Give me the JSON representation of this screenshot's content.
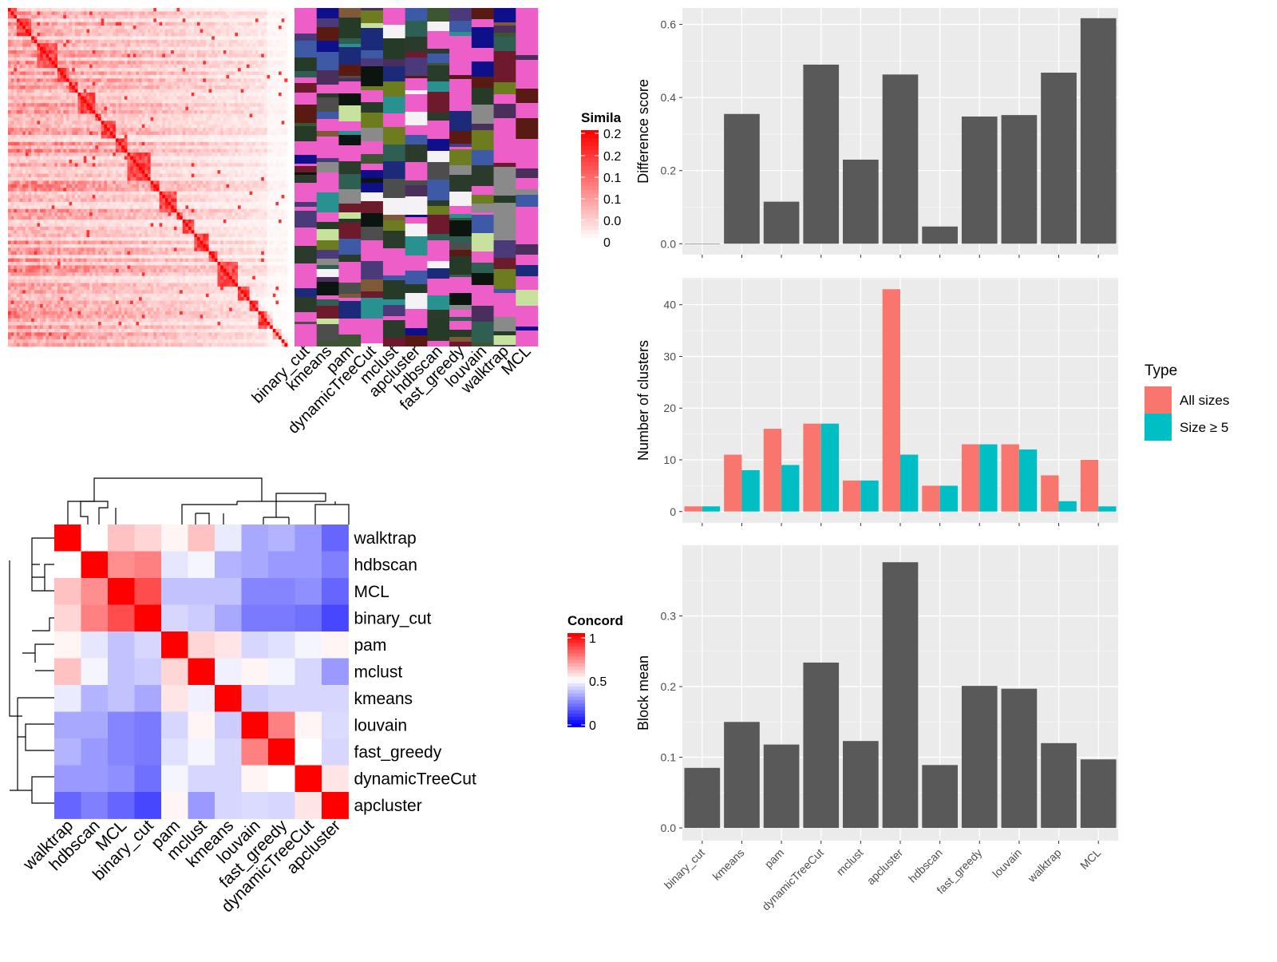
{
  "chart_data": [
    {
      "type": "heatmap",
      "panel": "similarity",
      "legend_title": "Simila",
      "legend_ticks": [
        "0.2",
        "0.2",
        "0.1",
        "0.1",
        "0.0",
        "0"
      ],
      "colors": {
        "low": "#ffffff",
        "high": "#ff0000"
      }
    },
    {
      "type": "heatmap",
      "panel": "cluster-assignments",
      "columns": [
        "binary_cut",
        "kmeans",
        "pam",
        "dynamicTreeCut",
        "mclust",
        "apcluster",
        "hdbscan",
        "fast_greedy",
        "louvain",
        "walktrap",
        "MCL"
      ],
      "background_color": "#ee5ec8"
    },
    {
      "type": "heatmap",
      "panel": "concordance",
      "legend_title": "Concord",
      "legend_ticks": [
        "1",
        "0.5",
        "0"
      ],
      "colors": {
        "low": "#0000ff",
        "mid": "#ffffff",
        "high": "#ff0000"
      },
      "rows": [
        "walktrap",
        "hdbscan",
        "MCL",
        "binary_cut",
        "pam",
        "mclust",
        "kmeans",
        "louvain",
        "fast_greedy",
        "dynamicTreeCut",
        "apcluster"
      ],
      "columns": [
        "walktrap",
        "hdbscan",
        "MCL",
        "binary_cut",
        "pam",
        "mclust",
        "kmeans",
        "louvain",
        "fast_greedy",
        "dynamicTreeCut",
        "apcluster"
      ],
      "values": [
        [
          1,
          0.5,
          0.62,
          0.58,
          0.52,
          0.62,
          0.46,
          0.33,
          0.35,
          0.3,
          0.2
        ],
        [
          0.5,
          1,
          0.72,
          0.75,
          0.45,
          0.48,
          0.35,
          0.33,
          0.3,
          0.3,
          0.25
        ],
        [
          0.62,
          0.72,
          1,
          0.85,
          0.38,
          0.38,
          0.38,
          0.26,
          0.26,
          0.28,
          0.2
        ],
        [
          0.58,
          0.75,
          0.85,
          1,
          0.42,
          0.4,
          0.33,
          0.24,
          0.24,
          0.22,
          0.14
        ],
        [
          0.52,
          0.45,
          0.38,
          0.42,
          1,
          0.58,
          0.55,
          0.42,
          0.44,
          0.48,
          0.52
        ],
        [
          0.62,
          0.48,
          0.38,
          0.4,
          0.58,
          1,
          0.47,
          0.52,
          0.48,
          0.42,
          0.3
        ],
        [
          0.46,
          0.35,
          0.38,
          0.33,
          0.55,
          0.47,
          1,
          0.4,
          0.42,
          0.42,
          0.42
        ],
        [
          0.33,
          0.33,
          0.26,
          0.24,
          0.42,
          0.52,
          0.4,
          1,
          0.75,
          0.52,
          0.43
        ],
        [
          0.35,
          0.3,
          0.26,
          0.24,
          0.44,
          0.48,
          0.42,
          0.75,
          1,
          0.5,
          0.42
        ],
        [
          0.3,
          0.3,
          0.28,
          0.22,
          0.48,
          0.42,
          0.42,
          0.52,
          0.5,
          1,
          0.55
        ],
        [
          0.2,
          0.25,
          0.2,
          0.14,
          0.52,
          0.3,
          0.42,
          0.43,
          0.42,
          0.55,
          1
        ]
      ]
    },
    {
      "type": "bar",
      "panel": "difference",
      "ylabel": "Difference score",
      "categories": [
        "binary_cut",
        "kmeans",
        "pam",
        "dynamicTreeCut",
        "mclust",
        "apcluster",
        "hdbscan",
        "fast_greedy",
        "louvain",
        "walktrap",
        "MCL"
      ],
      "values": [
        0.0,
        0.355,
        0.115,
        0.49,
        0.23,
        0.463,
        0.047,
        0.348,
        0.352,
        0.468,
        0.617
      ],
      "ylim": [
        -0.03,
        0.645
      ],
      "yticks": [
        0.0,
        0.2,
        0.4,
        0.6
      ],
      "ytick_labels": [
        "0.0",
        "0.2",
        "0.4",
        "0.6"
      ],
      "bar_color": "#595959"
    },
    {
      "type": "bar",
      "panel": "clusters",
      "ylabel": "Number of clusters",
      "legend_title": "Type",
      "categories": [
        "binary_cut",
        "kmeans",
        "pam",
        "dynamicTreeCut",
        "mclust",
        "apcluster",
        "hdbscan",
        "fast_greedy",
        "louvain",
        "walktrap",
        "MCL"
      ],
      "series": [
        {
          "name": "All sizes",
          "color": "#f8766d",
          "values": [
            1,
            11,
            16,
            17,
            6,
            43,
            5,
            13,
            13,
            7,
            10
          ]
        },
        {
          "name": "Size ≥ 5",
          "color": "#00bfc4",
          "values": [
            1,
            8,
            9,
            17,
            6,
            11,
            5,
            13,
            12,
            2,
            1
          ]
        }
      ],
      "ylim": [
        -2.2,
        45.2
      ],
      "yticks": [
        0,
        10,
        20,
        30,
        40
      ],
      "ytick_labels": [
        "0",
        "10",
        "20",
        "30",
        "40"
      ]
    },
    {
      "type": "bar",
      "panel": "blockmean",
      "ylabel": "Block mean",
      "xtick_labels": [
        "binary_cut",
        "kmeans",
        "pam",
        "dynamicTreeCut",
        "mclust",
        "apcluster",
        "hdbscan",
        "fast_greedy",
        "louvain",
        "walktrap",
        "MCL"
      ],
      "categories": [
        "binary_cut",
        "kmeans",
        "pam",
        "dynamicTreeCut",
        "mclust",
        "apcluster",
        "hdbscan",
        "fast_greedy",
        "louvain",
        "walktrap",
        "MCL"
      ],
      "values": [
        0.085,
        0.15,
        0.118,
        0.234,
        0.123,
        0.376,
        0.089,
        0.201,
        0.197,
        0.12,
        0.097
      ],
      "ylim": [
        -0.018,
        0.4
      ],
      "yticks": [
        0.0,
        0.1,
        0.2,
        0.3
      ],
      "ytick_labels": [
        "0.0",
        "0.1",
        "0.2",
        "0.3"
      ],
      "bar_color": "#595959"
    }
  ]
}
